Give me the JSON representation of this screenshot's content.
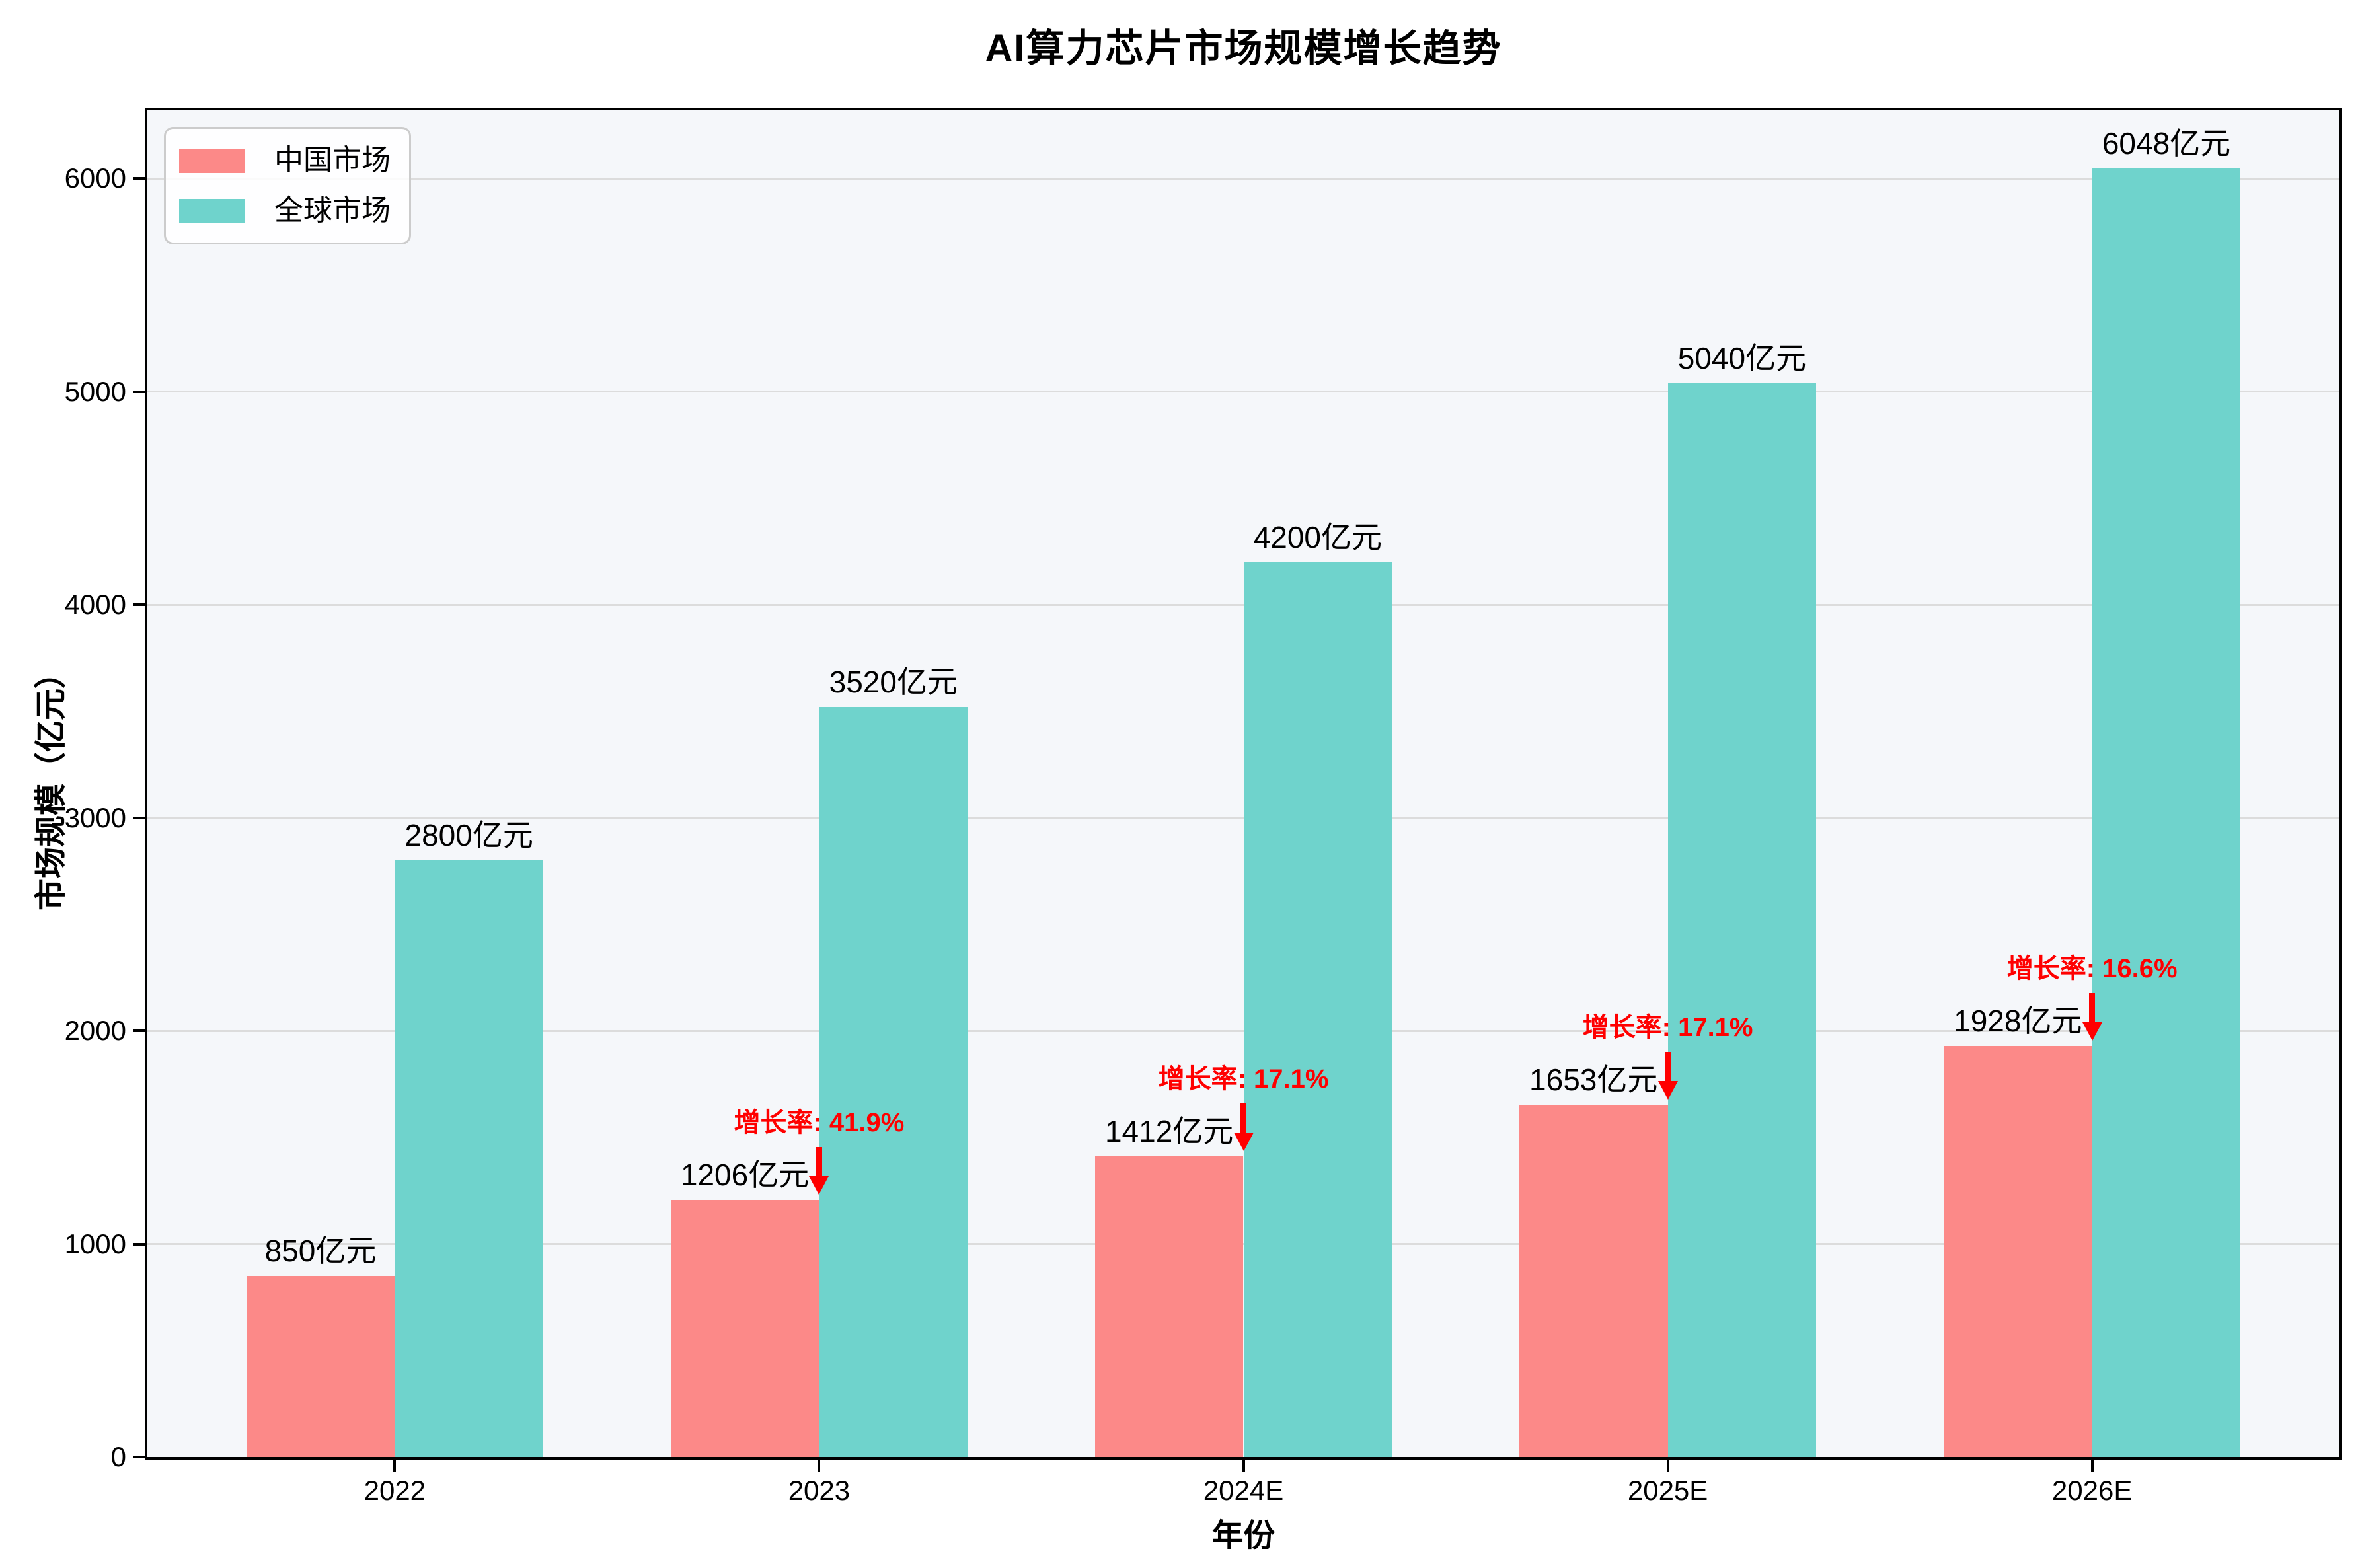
{
  "figure": {
    "title": "AI算力芯片市场规模增长趋势"
  },
  "chart_data": {
    "type": "bar",
    "title": "AI算力芯片市场规模增长趋势",
    "xlabel": "年份",
    "ylabel": "市场规模（亿元）",
    "categories": [
      "2022",
      "2023",
      "2024E",
      "2025E",
      "2026E"
    ],
    "series": [
      {
        "name": "中国市场",
        "color": "#FC8988",
        "values": [
          850,
          1206,
          1412,
          1653,
          1928
        ],
        "bar_labels": [
          "850亿元",
          "1206亿元",
          "1412亿元",
          "1653亿元",
          "1928亿元"
        ]
      },
      {
        "name": "全球市场",
        "color": "#6FD3CC",
        "values": [
          2800,
          3520,
          4200,
          5040,
          6048
        ],
        "bar_labels": [
          "2800亿元",
          "3520亿元",
          "4200亿元",
          "5040亿元",
          "6048亿元"
        ]
      }
    ],
    "growth_annotations": [
      {
        "category": "2023",
        "text": "增长率: 41.9%"
      },
      {
        "category": "2024E",
        "text": "增长率: 17.1%"
      },
      {
        "category": "2025E",
        "text": "增长率: 17.1%"
      },
      {
        "category": "2026E",
        "text": "增长率: 16.6%"
      }
    ],
    "annotation_color": "#FF0000",
    "ylim": [
      0,
      6320
    ],
    "yticks": [
      0,
      1000,
      2000,
      3000,
      4000,
      5000,
      6000
    ],
    "grid": true,
    "legend_position": "upper-left",
    "colors": {
      "plot_background": "#F5F7FA",
      "gridline": "#DCDCDC",
      "spine": "#000000"
    }
  }
}
